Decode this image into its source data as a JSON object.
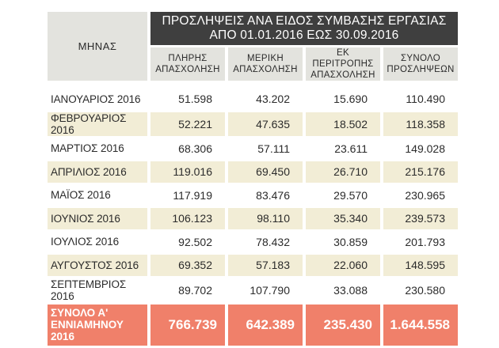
{
  "chart_data": {
    "type": "table",
    "title": "ΠΡΟΣΛΗΨΕΙΣ ΑΝΑ ΕΙΔΟΣ ΣΥΜΒΑΣΗΣ ΕΡΓΑΣΙΑΣ ΑΠΟ 01.01.2016 ΕΩΣ 30.09.2016",
    "title_line1": "ΠΡΟΣΛΗΨΕΙΣ ΑΝΑ ΕΙΔΟΣ ΣΥΜΒΑΣΗΣ ΕΡΓΑΣΙΑΣ",
    "title_line2": "ΑΠΟ 01.01.2016 ΕΩΣ 30.09.2016",
    "row_header": "ΜΗΝΑΣ",
    "columns": [
      {
        "line1": "ΠΛΗΡΗΣ",
        "line2": "ΑΠΑΣΧΟΛΗΣΗ"
      },
      {
        "line1": "ΜΕΡΙΚΗ",
        "line2": "ΑΠΑΣΧΟΛΗΣΗ"
      },
      {
        "line1": "ΕΚ ΠΕΡΙΤΡΟΠΗΣ",
        "line2": "ΑΠΑΣΧΟΛΗΣΗ"
      },
      {
        "line1": "ΣΥΝΟΛΟ",
        "line2": "ΠΡΟΣΛΗΨΕΩΝ"
      }
    ],
    "rows": [
      {
        "month": "ΙΑΝΟΥΑΡΙΟΣ 2016",
        "values": [
          "51.598",
          "43.202",
          "15.690",
          "110.490"
        ]
      },
      {
        "month": "ΦΕΒΡΟΥΑΡΙΟΣ 2016",
        "values": [
          "52.221",
          "47.635",
          "18.502",
          "118.358"
        ]
      },
      {
        "month": "ΜΑΡΤΙΟΣ 2016",
        "values": [
          "68.306",
          "57.111",
          "23.611",
          "149.028"
        ]
      },
      {
        "month": "ΑΠΡΙΛΙΟΣ 2016",
        "values": [
          "119.016",
          "69.450",
          "26.710",
          "215.176"
        ]
      },
      {
        "month": "ΜΑΪΟΣ 2016",
        "values": [
          "117.919",
          "83.476",
          "29.570",
          "230.965"
        ]
      },
      {
        "month": "ΙΟΥΝΙΟΣ 2016",
        "values": [
          "106.123",
          "98.110",
          "35.340",
          "239.573"
        ]
      },
      {
        "month": "ΙΟΥΛΙΟΣ 2016",
        "values": [
          "92.502",
          "78.432",
          "30.859",
          "201.793"
        ]
      },
      {
        "month": "ΑΥΓΟΥΣΤΟΣ 2016",
        "values": [
          "69.352",
          "57.183",
          "22.060",
          "148.595"
        ]
      },
      {
        "month": "ΣΕΠΤΕΜΒΡΙΟΣ 2016",
        "values": [
          "89.702",
          "107.790",
          "33.088",
          "230.580"
        ]
      }
    ],
    "total": {
      "label": "ΣΥΝΟΛΟ Α'\nΕΝΝΙΑΜΗΝΟΥ\n2016",
      "values": [
        "766.739",
        "642.389",
        "235.430",
        "1.644.558"
      ]
    }
  },
  "colors": {
    "title_bg": "#3f3f3f",
    "header_bg": "#e3e3de",
    "alt_row_bg": "#f2edd6",
    "total_bg": "#f0806a"
  }
}
